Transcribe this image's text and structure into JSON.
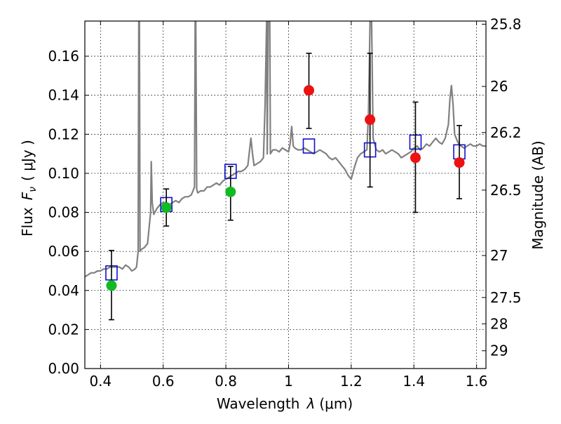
{
  "chart_data": {
    "type": "scatter",
    "title": "",
    "xlabel": "Wavelength",
    "xlabel_symbol": "λ",
    "xlabel_unit": "(μm)",
    "ylabel": "Flux",
    "ylabel_symbol": "F",
    "ylabel_subscript": "ν",
    "ylabel_unit": "( μJy )",
    "y2label": "Magnitude (AB)",
    "xlim": [
      0.35,
      1.63
    ],
    "ylim": [
      0.0,
      0.178
    ],
    "grid": true,
    "x_ticks": [
      0.4,
      0.6,
      0.8,
      1.0,
      1.2,
      1.4,
      1.6
    ],
    "x_tick_labels": [
      "0.4",
      "0.6",
      "0.8",
      "1",
      "1.2",
      "1.4",
      "1.6"
    ],
    "y_ticks": [
      0.0,
      0.02,
      0.04,
      0.06,
      0.08,
      0.1,
      0.12,
      0.14,
      0.16
    ],
    "y_tick_labels": [
      "0.00",
      "0.02",
      "0.04",
      "0.06",
      "0.08",
      "0.10",
      "0.12",
      "0.14",
      "0.16"
    ],
    "y2_ticks": [
      {
        "label": "25.8",
        "flux": 0.1764
      },
      {
        "label": "26",
        "flux": 0.1445
      },
      {
        "label": "26.2",
        "flux": 0.1209
      },
      {
        "label": "26.5",
        "flux": 0.0914
      },
      {
        "label": "27",
        "flux": 0.0579
      },
      {
        "label": "27.5",
        "flux": 0.0364
      },
      {
        "label": "28",
        "flux": 0.0229
      },
      {
        "label": "29",
        "flux": 0.0091
      }
    ],
    "colors": {
      "spectrum": "#808080",
      "model": "#1010cc",
      "green": "#11bb22",
      "red": "#ee1111",
      "errorbar": "#000000"
    },
    "series": [
      {
        "kind": "line",
        "points": [
          [
            0.35,
            0.047
          ],
          [
            0.36,
            0.048
          ],
          [
            0.37,
            0.049
          ],
          [
            0.38,
            0.049
          ],
          [
            0.39,
            0.05
          ],
          [
            0.4,
            0.05
          ],
          [
            0.41,
            0.051
          ],
          [
            0.42,
            0.051
          ],
          [
            0.43,
            0.052
          ],
          [
            0.44,
            0.052
          ],
          [
            0.45,
            0.052
          ],
          [
            0.46,
            0.052
          ],
          [
            0.47,
            0.051
          ],
          [
            0.48,
            0.053
          ],
          [
            0.49,
            0.052
          ],
          [
            0.5,
            0.05
          ],
          [
            0.51,
            0.051
          ],
          [
            0.515,
            0.052
          ],
          [
            0.52,
            0.06
          ],
          [
            0.522,
            0.178
          ],
          [
            0.524,
            0.178
          ],
          [
            0.526,
            0.06
          ],
          [
            0.53,
            0.061
          ],
          [
            0.54,
            0.062
          ],
          [
            0.55,
            0.064
          ],
          [
            0.56,
            0.08
          ],
          [
            0.562,
            0.106
          ],
          [
            0.565,
            0.085
          ],
          [
            0.57,
            0.079
          ],
          [
            0.58,
            0.082
          ],
          [
            0.59,
            0.084
          ],
          [
            0.6,
            0.085
          ],
          [
            0.61,
            0.085
          ],
          [
            0.62,
            0.084
          ],
          [
            0.63,
            0.085
          ],
          [
            0.64,
            0.086
          ],
          [
            0.65,
            0.085
          ],
          [
            0.66,
            0.087
          ],
          [
            0.67,
            0.088
          ],
          [
            0.68,
            0.088
          ],
          [
            0.69,
            0.089
          ],
          [
            0.7,
            0.093
          ],
          [
            0.702,
            0.178
          ],
          [
            0.704,
            0.178
          ],
          [
            0.707,
            0.092
          ],
          [
            0.71,
            0.09
          ],
          [
            0.72,
            0.091
          ],
          [
            0.73,
            0.091
          ],
          [
            0.74,
            0.093
          ],
          [
            0.75,
            0.093
          ],
          [
            0.76,
            0.094
          ],
          [
            0.77,
            0.095
          ],
          [
            0.78,
            0.094
          ],
          [
            0.79,
            0.096
          ],
          [
            0.8,
            0.097
          ],
          [
            0.81,
            0.098
          ],
          [
            0.82,
            0.099
          ],
          [
            0.83,
            0.1
          ],
          [
            0.84,
            0.101
          ],
          [
            0.85,
            0.101
          ],
          [
            0.86,
            0.102
          ],
          [
            0.87,
            0.104
          ],
          [
            0.88,
            0.118
          ],
          [
            0.885,
            0.11
          ],
          [
            0.89,
            0.104
          ],
          [
            0.9,
            0.105
          ],
          [
            0.91,
            0.106
          ],
          [
            0.92,
            0.108
          ],
          [
            0.925,
            0.135
          ],
          [
            0.93,
            0.178
          ],
          [
            0.932,
            0.11
          ],
          [
            0.935,
            0.178
          ],
          [
            0.94,
            0.178
          ],
          [
            0.942,
            0.11
          ],
          [
            0.95,
            0.112
          ],
          [
            0.96,
            0.112
          ],
          [
            0.97,
            0.111
          ],
          [
            0.98,
            0.113
          ],
          [
            0.99,
            0.112
          ],
          [
            1.0,
            0.111
          ],
          [
            1.005,
            0.115
          ],
          [
            1.01,
            0.124
          ],
          [
            1.015,
            0.114
          ],
          [
            1.02,
            0.113
          ],
          [
            1.03,
            0.112
          ],
          [
            1.04,
            0.112
          ],
          [
            1.05,
            0.113
          ],
          [
            1.06,
            0.112
          ],
          [
            1.07,
            0.111
          ],
          [
            1.08,
            0.11
          ],
          [
            1.09,
            0.111
          ],
          [
            1.1,
            0.112
          ],
          [
            1.11,
            0.111
          ],
          [
            1.12,
            0.11
          ],
          [
            1.13,
            0.108
          ],
          [
            1.14,
            0.107
          ],
          [
            1.15,
            0.108
          ],
          [
            1.16,
            0.106
          ],
          [
            1.17,
            0.104
          ],
          [
            1.18,
            0.102
          ],
          [
            1.19,
            0.099
          ],
          [
            1.2,
            0.097
          ],
          [
            1.21,
            0.103
          ],
          [
            1.22,
            0.108
          ],
          [
            1.23,
            0.11
          ],
          [
            1.24,
            0.111
          ],
          [
            1.25,
            0.112
          ],
          [
            1.255,
            0.13
          ],
          [
            1.26,
            0.178
          ],
          [
            1.265,
            0.178
          ],
          [
            1.27,
            0.118
          ],
          [
            1.28,
            0.112
          ],
          [
            1.29,
            0.111
          ],
          [
            1.3,
            0.112
          ],
          [
            1.31,
            0.11
          ],
          [
            1.32,
            0.111
          ],
          [
            1.33,
            0.112
          ],
          [
            1.34,
            0.111
          ],
          [
            1.35,
            0.11
          ],
          [
            1.36,
            0.108
          ],
          [
            1.37,
            0.109
          ],
          [
            1.38,
            0.11
          ],
          [
            1.39,
            0.111
          ],
          [
            1.4,
            0.113
          ],
          [
            1.41,
            0.114
          ],
          [
            1.42,
            0.112
          ],
          [
            1.43,
            0.113
          ],
          [
            1.44,
            0.115
          ],
          [
            1.45,
            0.114
          ],
          [
            1.46,
            0.116
          ],
          [
            1.47,
            0.118
          ],
          [
            1.48,
            0.116
          ],
          [
            1.49,
            0.115
          ],
          [
            1.5,
            0.118
          ],
          [
            1.51,
            0.125
          ],
          [
            1.515,
            0.138
          ],
          [
            1.52,
            0.145
          ],
          [
            1.525,
            0.135
          ],
          [
            1.53,
            0.12
          ],
          [
            1.54,
            0.116
          ],
          [
            1.55,
            0.114
          ],
          [
            1.56,
            0.113
          ],
          [
            1.57,
            0.114
          ],
          [
            1.58,
            0.115
          ],
          [
            1.59,
            0.114
          ],
          [
            1.6,
            0.114
          ],
          [
            1.61,
            0.115
          ],
          [
            1.62,
            0.114
          ],
          [
            1.63,
            0.114
          ]
        ]
      },
      {
        "kind": "square",
        "points": [
          [
            0.435,
            0.049
          ],
          [
            0.61,
            0.084
          ],
          [
            0.815,
            0.101
          ],
          [
            1.065,
            0.114
          ],
          [
            1.26,
            0.112
          ],
          [
            1.405,
            0.116
          ],
          [
            1.545,
            0.111
          ]
        ]
      },
      {
        "kind": "circle_green",
        "points": [
          {
            "x": 0.435,
            "y": 0.0425,
            "lo": 0.025,
            "hi": 0.0605
          },
          {
            "x": 0.61,
            "y": 0.0825,
            "lo": 0.073,
            "hi": 0.092
          },
          {
            "x": 0.815,
            "y": 0.0905,
            "lo": 0.076,
            "hi": 0.1035
          }
        ]
      },
      {
        "kind": "circle_red",
        "points": [
          {
            "x": 1.065,
            "y": 0.1425,
            "lo": 0.123,
            "hi": 0.1615
          },
          {
            "x": 1.26,
            "y": 0.1275,
            "lo": 0.093,
            "hi": 0.1615
          },
          {
            "x": 1.405,
            "y": 0.108,
            "lo": 0.08,
            "hi": 0.1365
          },
          {
            "x": 1.545,
            "y": 0.1055,
            "lo": 0.087,
            "hi": 0.1245
          }
        ]
      }
    ]
  }
}
